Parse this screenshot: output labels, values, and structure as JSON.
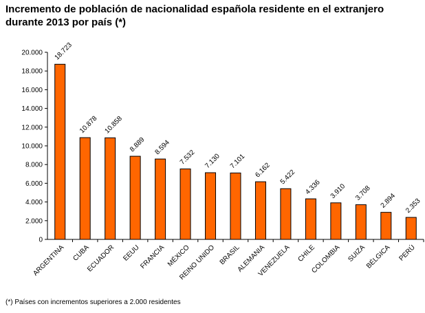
{
  "chart_data": {
    "type": "bar",
    "title": "Incremento de población de nacionalidad española residente en el extranjero durante 2013 por país (*)",
    "footnote": "(*) Países con incrementos superiores a 2.000 residentes",
    "categories": [
      "ARGENTINA",
      "CUBA",
      "ECUADOR",
      "EEUU",
      "FRANCIA",
      "MÉXICO",
      "REINO UNIDO",
      "BRASIL",
      "ALEMANIA",
      "VENEZUELA",
      "CHILE",
      "COLOMBIA",
      "SUIZA",
      "BÉLGICA",
      "PERÚ"
    ],
    "values": [
      18723,
      10878,
      10858,
      8889,
      8594,
      7532,
      7130,
      7101,
      6162,
      5422,
      4336,
      3910,
      3708,
      2894,
      2353
    ],
    "data_labels": [
      "18.723",
      "10.878",
      "10.858",
      "8.889",
      "8.594",
      "7.532",
      "7.130",
      "7.101",
      "6.162",
      "5.422",
      "4.336",
      "3.910",
      "3.708",
      "2.894",
      "2.353"
    ],
    "ylim": [
      0,
      20000
    ],
    "yticks": [
      "0",
      "2.000",
      "4.000",
      "6.000",
      "8.000",
      "10.000",
      "12.000",
      "14.000",
      "16.000",
      "18.000",
      "20.000"
    ],
    "grid": false,
    "legend": "none",
    "bar_color": "#FF6600",
    "bar_edge_color": "#000000"
  }
}
